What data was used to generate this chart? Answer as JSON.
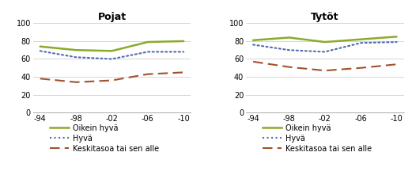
{
  "x_labels": [
    "-94",
    "-98",
    "-02",
    "-06",
    "-10"
  ],
  "x_values": [
    1994,
    1998,
    2002,
    2006,
    2010
  ],
  "pojat": {
    "oikein_hyva": [
      74,
      70,
      69,
      79,
      80
    ],
    "hyva": [
      69,
      62,
      60,
      68,
      68
    ],
    "keski": [
      38,
      34,
      36,
      43,
      45
    ]
  },
  "tytot": {
    "oikein_hyva": [
      81,
      84,
      79,
      82,
      85
    ],
    "hyva": [
      76,
      70,
      68,
      78,
      79
    ],
    "keski": [
      57,
      51,
      47,
      50,
      54
    ]
  },
  "title_pojat": "Pojat",
  "title_tytot": "Tytöt",
  "color_oikein_hyva": "#8aab2a",
  "color_hyva": "#4f6baf",
  "color_keski": "#a0522d",
  "legend_oikein_hyva": "Oikein hyvä",
  "legend_hyva": "Hyvä",
  "legend_keski": "Keskitasoa tai sen alle",
  "ylim": [
    0,
    100
  ],
  "yticks": [
    0,
    20,
    40,
    60,
    80,
    100
  ],
  "background_color": "#ffffff",
  "grid_color": "#d0d0d0",
  "title_fontsize": 9,
  "tick_fontsize": 7,
  "legend_fontsize": 7
}
